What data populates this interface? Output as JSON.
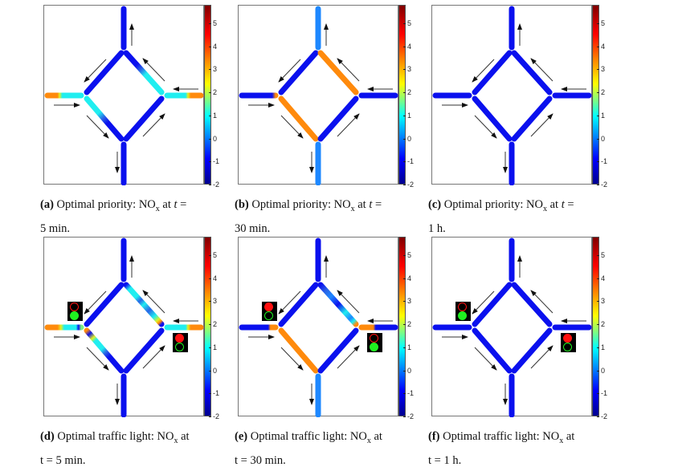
{
  "colors": {
    "blue": "#0a10ee",
    "cyan": "#20eef0",
    "lightblue": "#1e88ff",
    "midblue": "#2a64e6",
    "orange": "#ff8a0c",
    "yellow": "#e4f020",
    "red": "#ff1010",
    "green": "#20f020"
  },
  "colorbar": {
    "min": -2,
    "max": 5.8,
    "ticks": [
      "5",
      "4",
      "3",
      "2",
      "1",
      "0",
      "-1",
      "-2"
    ]
  },
  "panels": [
    {
      "id": "a",
      "label": "(a)",
      "caption1": " Optimal priority: NO",
      "sub": "x",
      "caption2": " at ",
      "t": "t",
      "caption3": " =",
      "caption_line2": "5 min.",
      "lights": null,
      "roads": {
        "N": [
          [
            0,
            "#0a10ee"
          ],
          [
            1,
            "#0a10ee"
          ]
        ],
        "S": [
          [
            0,
            "#0a10ee"
          ],
          [
            1,
            "#0a10ee"
          ]
        ],
        "W": [
          [
            0,
            "#ff8a0c"
          ],
          [
            0.3,
            "#ff8a0c"
          ],
          [
            0.36,
            "#e4f020"
          ],
          [
            0.44,
            "#20eef0"
          ],
          [
            1,
            "#20eef0"
          ]
        ],
        "E": [
          [
            0,
            "#20eef0"
          ],
          [
            0.55,
            "#20eef0"
          ],
          [
            0.62,
            "#e4f020"
          ],
          [
            0.7,
            "#ff8a0c"
          ],
          [
            1,
            "#ff8a0c"
          ]
        ],
        "NW": [
          [
            0,
            "#0a10ee"
          ],
          [
            1,
            "#0a10ee"
          ]
        ],
        "NE": [
          [
            0,
            "#0a10ee"
          ],
          [
            0.3,
            "#0a10ee"
          ],
          [
            0.42,
            "#2a64e6"
          ],
          [
            0.55,
            "#20eef0"
          ],
          [
            1,
            "#20eef0"
          ]
        ],
        "SW": [
          [
            0,
            "#20eef0"
          ],
          [
            0.35,
            "#20eef0"
          ],
          [
            0.48,
            "#2a64e6"
          ],
          [
            0.6,
            "#0a10ee"
          ],
          [
            1,
            "#0a10ee"
          ]
        ],
        "SE": [
          [
            0,
            "#0a10ee"
          ],
          [
            1,
            "#0a10ee"
          ]
        ]
      }
    },
    {
      "id": "b",
      "label": "(b)",
      "caption1": " Optimal priority: NO",
      "sub": "x",
      "caption2": " at ",
      "t": "t",
      "caption3": " =",
      "caption_line2": "30 min.",
      "lights": null,
      "roads": {
        "N": [
          [
            0,
            "#1e88ff"
          ],
          [
            1,
            "#1e88ff"
          ]
        ],
        "S": [
          [
            0,
            "#1e88ff"
          ],
          [
            1,
            "#1e88ff"
          ]
        ],
        "W": [
          [
            0,
            "#0a10ee"
          ],
          [
            0.9,
            "#0a10ee"
          ],
          [
            1,
            "#ff8a0c"
          ]
        ],
        "E": [
          [
            0,
            "#0a10ee"
          ],
          [
            1,
            "#0a10ee"
          ]
        ],
        "NW": [
          [
            0,
            "#0a10ee"
          ],
          [
            1,
            "#0a10ee"
          ]
        ],
        "NE": [
          [
            0,
            "#ff8a0c"
          ],
          [
            1,
            "#ff8a0c"
          ]
        ],
        "SW": [
          [
            0,
            "#ff8a0c"
          ],
          [
            1,
            "#ff8a0c"
          ]
        ],
        "SE": [
          [
            0,
            "#0a10ee"
          ],
          [
            1,
            "#0a10ee"
          ]
        ]
      }
    },
    {
      "id": "c",
      "label": "(c)",
      "caption1": " Optimal priority: NO",
      "sub": "x",
      "caption2": " at ",
      "t": "t",
      "caption3": " =",
      "caption_line2": "1 h.",
      "lights": null,
      "roads": {
        "N": [
          [
            0,
            "#0a10ee"
          ],
          [
            1,
            "#0a10ee"
          ]
        ],
        "S": [
          [
            0,
            "#0a10ee"
          ],
          [
            1,
            "#0a10ee"
          ]
        ],
        "W": [
          [
            0,
            "#0a10ee"
          ],
          [
            1,
            "#0a10ee"
          ]
        ],
        "E": [
          [
            0,
            "#0a10ee"
          ],
          [
            1,
            "#0a10ee"
          ]
        ],
        "NW": [
          [
            0,
            "#0a10ee"
          ],
          [
            1,
            "#0a10ee"
          ]
        ],
        "NE": [
          [
            0,
            "#0a10ee"
          ],
          [
            1,
            "#0a10ee"
          ]
        ],
        "SW": [
          [
            0,
            "#0a10ee"
          ],
          [
            1,
            "#0a10ee"
          ]
        ],
        "SE": [
          [
            0,
            "#0a10ee"
          ],
          [
            1,
            "#0a10ee"
          ]
        ]
      }
    },
    {
      "id": "d",
      "label": "(d)",
      "caption1": " Optimal traffic light: NO",
      "sub": "x",
      "caption2": " at",
      "t": "",
      "caption3": "",
      "caption_line2": "t = 5 min.",
      "lights": {
        "left": "green",
        "right": "red"
      },
      "roads": {
        "N": [
          [
            0,
            "#0a10ee"
          ],
          [
            1,
            "#0a10ee"
          ]
        ],
        "S": [
          [
            0,
            "#0a10ee"
          ],
          [
            1,
            "#0a10ee"
          ]
        ],
        "W": [
          [
            0,
            "#ff8a0c"
          ],
          [
            0.3,
            "#ff8a0c"
          ],
          [
            0.4,
            "#e4f020"
          ],
          [
            0.5,
            "#20eef0"
          ],
          [
            0.85,
            "#20eef0"
          ],
          [
            0.92,
            "#0a10ee"
          ],
          [
            1,
            "#7cf080"
          ]
        ],
        "E": [
          [
            0,
            "#20eef0"
          ],
          [
            0.55,
            "#20eef0"
          ],
          [
            0.62,
            "#e4f020"
          ],
          [
            0.7,
            "#ff8a0c"
          ],
          [
            1,
            "#ff8a0c"
          ]
        ],
        "NW": [
          [
            0,
            "#0a10ee"
          ],
          [
            1,
            "#0a10ee"
          ]
        ],
        "NE": [
          [
            0,
            "#0a10ee"
          ],
          [
            0.1,
            "#20eef0"
          ],
          [
            0.3,
            "#20eef0"
          ],
          [
            0.4,
            "#2a64e6"
          ],
          [
            0.5,
            "#20eef0"
          ],
          [
            0.65,
            "#2a64e6"
          ],
          [
            0.8,
            "#20eef0"
          ],
          [
            0.9,
            "#e4f020"
          ],
          [
            0.95,
            "#ff8a0c"
          ],
          [
            1,
            "#0a10ee"
          ]
        ],
        "SW": [
          [
            0,
            "#ff8a0c"
          ],
          [
            0.08,
            "#0a10ee"
          ],
          [
            0.18,
            "#e4f020"
          ],
          [
            0.25,
            "#20eef0"
          ],
          [
            0.45,
            "#20eef0"
          ],
          [
            0.55,
            "#2a64e6"
          ],
          [
            0.65,
            "#0a10ee"
          ],
          [
            1,
            "#0a10ee"
          ]
        ],
        "SE": [
          [
            0,
            "#0a10ee"
          ],
          [
            1,
            "#0a10ee"
          ]
        ]
      }
    },
    {
      "id": "e",
      "label": "(e)",
      "caption1": " Optimal traffic light: NO",
      "sub": "x",
      "caption2": " at",
      "t": "",
      "caption3": "",
      "caption_line2": "t = 30 min.",
      "lights": {
        "left": "red",
        "right": "green"
      },
      "roads": {
        "N": [
          [
            0,
            "#0a10ee"
          ],
          [
            1,
            "#0a10ee"
          ]
        ],
        "S": [
          [
            0,
            "#1e88ff"
          ],
          [
            1,
            "#1e88ff"
          ]
        ],
        "W": [
          [
            0,
            "#0a10ee"
          ],
          [
            0.78,
            "#0a10ee"
          ],
          [
            0.85,
            "#ff8a0c"
          ],
          [
            1,
            "#ff8a0c"
          ]
        ],
        "E": [
          [
            0,
            "#ff8a0c"
          ],
          [
            0.35,
            "#ff8a0c"
          ],
          [
            0.42,
            "#0a10ee"
          ],
          [
            1,
            "#0a10ee"
          ]
        ],
        "NW": [
          [
            0,
            "#0a10ee"
          ],
          [
            1,
            "#0a10ee"
          ]
        ],
        "NE": [
          [
            0,
            "#0a10ee"
          ],
          [
            0.15,
            "#2a64e6"
          ],
          [
            0.3,
            "#1e88ff"
          ],
          [
            0.5,
            "#0a10ee"
          ],
          [
            0.7,
            "#20eef0"
          ],
          [
            0.85,
            "#1e88ff"
          ],
          [
            0.93,
            "#20eef0"
          ],
          [
            1,
            "#ff8a0c"
          ]
        ],
        "SW": [
          [
            0,
            "#ff8a0c"
          ],
          [
            1,
            "#ff8a0c"
          ]
        ],
        "SE": [
          [
            0,
            "#0a10ee"
          ],
          [
            1,
            "#0a10ee"
          ]
        ]
      }
    },
    {
      "id": "f",
      "label": "(f)",
      "caption1": " Optimal traffic light: NO",
      "sub": "x",
      "caption2": " at",
      "t": "",
      "caption3": "",
      "caption_line2": "t = 1 h.",
      "lights": {
        "left": "green",
        "right": "red"
      },
      "roads": {
        "N": [
          [
            0,
            "#0a10ee"
          ],
          [
            1,
            "#0a10ee"
          ]
        ],
        "S": [
          [
            0,
            "#0a10ee"
          ],
          [
            1,
            "#0a10ee"
          ]
        ],
        "W": [
          [
            0,
            "#0a10ee"
          ],
          [
            1,
            "#0a10ee"
          ]
        ],
        "E": [
          [
            0,
            "#0a10ee"
          ],
          [
            1,
            "#0a10ee"
          ]
        ],
        "NW": [
          [
            0,
            "#0a10ee"
          ],
          [
            1,
            "#0a10ee"
          ]
        ],
        "NE": [
          [
            0,
            "#0a10ee"
          ],
          [
            1,
            "#0a10ee"
          ]
        ],
        "SW": [
          [
            0,
            "#0a10ee"
          ],
          [
            1,
            "#0a10ee"
          ]
        ],
        "SE": [
          [
            0,
            "#0a10ee"
          ],
          [
            1,
            "#0a10ee"
          ]
        ]
      }
    }
  ]
}
